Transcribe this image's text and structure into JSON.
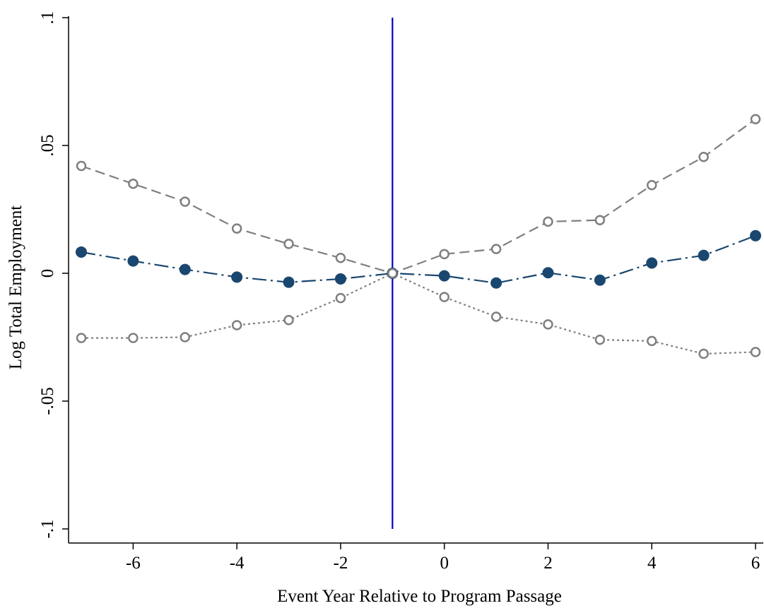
{
  "chart_data": {
    "type": "line",
    "xlabel": "Event Year Relative to Program Passage",
    "ylabel": "Log Total Employment",
    "xlim": [
      -7,
      6
    ],
    "ylim": [
      -0.1,
      0.1
    ],
    "xticks": [
      {
        "value": -6,
        "label": "-6"
      },
      {
        "value": -4,
        "label": "-4"
      },
      {
        "value": -2,
        "label": "-2"
      },
      {
        "value": 0,
        "label": "0"
      },
      {
        "value": 2,
        "label": "2"
      },
      {
        "value": 4,
        "label": "4"
      },
      {
        "value": 6,
        "label": "6"
      }
    ],
    "yticks": [
      {
        "value": -0.1,
        "label": "-.1"
      },
      {
        "value": -0.05,
        "label": "-.05"
      },
      {
        "value": 0,
        "label": "0"
      },
      {
        "value": 0.05,
        "label": ".05"
      },
      {
        "value": 0.1,
        "label": ".1"
      }
    ],
    "x": [
      -7,
      -6,
      -5,
      -4,
      -3,
      -2,
      -1,
      0,
      1,
      2,
      3,
      4,
      5,
      6
    ],
    "series": [
      {
        "values": [
          0.042,
          0.035,
          0.028,
          0.0175,
          0.0115,
          0.006,
          0,
          0.0075,
          0.0095,
          0.0202,
          0.0208,
          0.0345,
          0.0455,
          0.0603
        ],
        "color": "#7f7f7f",
        "style": "dashed",
        "marker": "hollow-circle"
      },
      {
        "values": [
          0.0083,
          0.0048,
          0.0015,
          -0.0015,
          -0.0035,
          -0.0022,
          0,
          -0.001,
          -0.0038,
          0.0002,
          -0.0027,
          0.004,
          0.007,
          0.0147
        ],
        "color": "#1a476f",
        "style": "dash-dot",
        "marker": "filled-circle"
      },
      {
        "values": [
          -0.0253,
          -0.0253,
          -0.025,
          -0.0203,
          -0.0183,
          -0.0097,
          0,
          -0.0093,
          -0.017,
          -0.02,
          -0.026,
          -0.0265,
          -0.0315,
          -0.0308
        ],
        "color": "#7f7f7f",
        "style": "dotted",
        "marker": "hollow-circle"
      }
    ],
    "reference_line": {
      "x": -1,
      "color": "#0000cc"
    },
    "grid": false,
    "legend": "none"
  }
}
